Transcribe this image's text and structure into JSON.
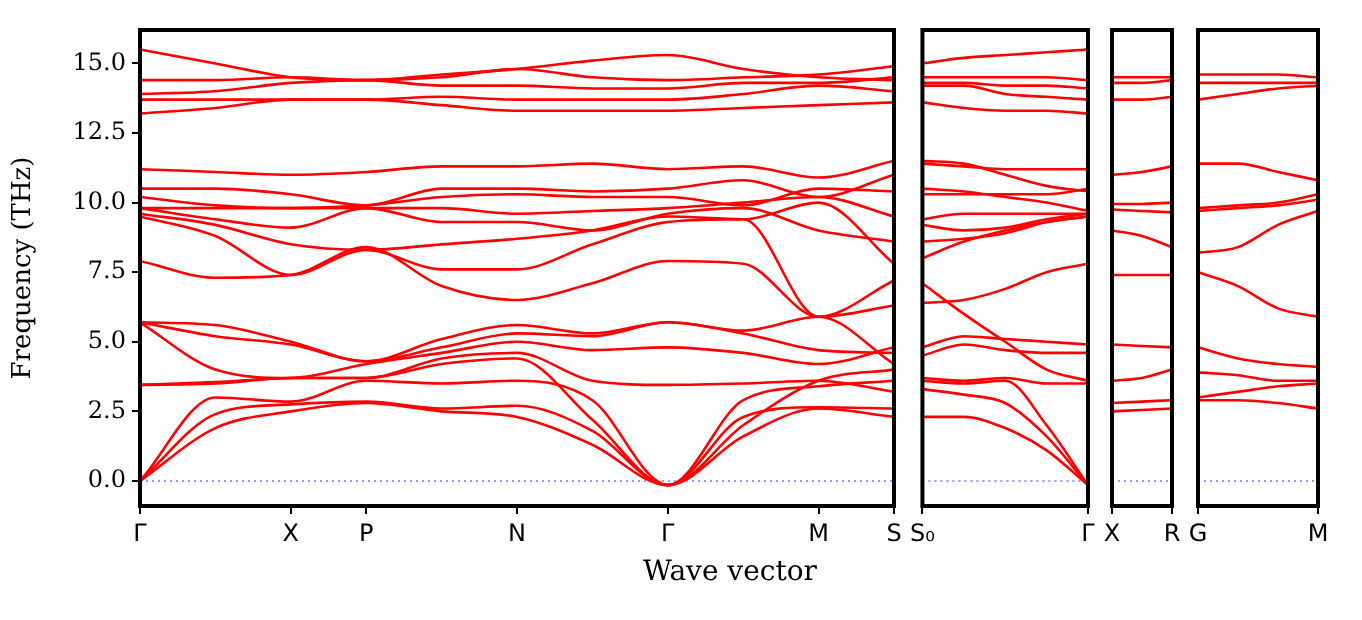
{
  "chart_data": [
    {
      "type": "line",
      "ylabel": "Frequency (THz)",
      "xlabel": "Wave vector",
      "categories": [
        "Γ",
        null,
        "X",
        "P",
        null,
        "N",
        null,
        "Γ",
        null,
        "M",
        "S"
      ],
      "ylim": [
        -0.9,
        16.2
      ],
      "yticks": [
        {
          "value": 0,
          "label": "0.0"
        },
        {
          "value": 2.5,
          "label": "2.5"
        },
        {
          "value": 5,
          "label": "5.0"
        },
        {
          "value": 7.5,
          "label": "7.5"
        },
        {
          "value": 10,
          "label": "10.0"
        },
        {
          "value": 12.5,
          "label": "12.5"
        },
        {
          "value": 15,
          "label": "15.0"
        }
      ],
      "grid": false,
      "ref_lines": [
        {
          "axis": "y",
          "value": 0,
          "color": "#7777ff",
          "line_style": "dotted"
        }
      ],
      "series": [
        {
          "color": "#ff0000",
          "values": [
            0,
            1.9,
            2.5,
            2.8,
            2.5,
            2.3,
            1.3,
            -0.15,
            1.6,
            2.6,
            2.3
          ]
        },
        {
          "color": "#ff0000",
          "values": [
            0,
            2.4,
            2.75,
            2.85,
            2.6,
            2.7,
            1.8,
            -0.15,
            2.3,
            2.65,
            2.6
          ]
        },
        {
          "color": "#ff0000",
          "values": [
            0,
            3.0,
            2.85,
            3.6,
            3.5,
            3.6,
            2.9,
            -0.15,
            2.9,
            3.4,
            3.6
          ]
        },
        {
          "color": "#ff0000",
          "values": [
            3.45,
            3.55,
            3.7,
            3.7,
            4.2,
            4.4,
            2.2,
            -0.15,
            2.0,
            3.6,
            4.0
          ]
        },
        {
          "color": "#ff0000",
          "values": [
            3.45,
            3.5,
            3.7,
            3.7,
            4.4,
            4.6,
            3.6,
            3.45,
            3.5,
            3.6,
            3.2
          ]
        },
        {
          "color": "#ff0000",
          "values": [
            5.7,
            4.0,
            3.7,
            4.2,
            4.6,
            5.0,
            4.7,
            4.8,
            4.6,
            4.2,
            4.8
          ]
        },
        {
          "color": "#ff0000",
          "values": [
            5.7,
            5.2,
            4.9,
            4.3,
            4.8,
            5.3,
            5.2,
            5.7,
            5.3,
            4.7,
            4.6
          ]
        },
        {
          "color": "#ff0000",
          "values": [
            5.7,
            5.6,
            5.0,
            4.3,
            5.1,
            5.6,
            5.3,
            5.7,
            5.4,
            5.9,
            4.2
          ]
        },
        {
          "color": "#ff0000",
          "values": [
            7.9,
            7.3,
            7.4,
            8.4,
            7.0,
            6.5,
            7.1,
            7.9,
            7.8,
            5.9,
            6.3
          ]
        },
        {
          "color": "#ff0000",
          "values": [
            9.5,
            8.8,
            7.4,
            8.3,
            7.6,
            7.6,
            8.5,
            9.3,
            9.4,
            5.9,
            7.2
          ]
        },
        {
          "color": "#ff0000",
          "values": [
            9.6,
            9.2,
            8.5,
            8.3,
            8.5,
            8.7,
            9.0,
            9.5,
            9.4,
            10.0,
            7.8
          ]
        },
        {
          "color": "#ff0000",
          "values": [
            9.8,
            9.4,
            9.1,
            9.8,
            9.3,
            9.3,
            9.0,
            9.6,
            9.8,
            9.0,
            8.6
          ]
        },
        {
          "color": "#ff0000",
          "values": [
            9.8,
            9.8,
            9.8,
            9.8,
            9.8,
            9.6,
            9.7,
            9.8,
            10.0,
            10.2,
            9.5
          ]
        },
        {
          "color": "#ff0000",
          "values": [
            10.2,
            9.9,
            9.8,
            9.9,
            10.2,
            10.3,
            10.2,
            10.2,
            9.9,
            10.5,
            10.4
          ]
        },
        {
          "color": "#ff0000",
          "values": [
            10.5,
            10.5,
            10.3,
            9.9,
            10.5,
            10.5,
            10.4,
            10.5,
            10.8,
            10.2,
            11.0
          ]
        },
        {
          "color": "#ff0000",
          "values": [
            11.2,
            11.1,
            11.0,
            11.1,
            11.3,
            11.3,
            11.4,
            11.2,
            11.3,
            10.9,
            11.5
          ]
        },
        {
          "color": "#ff0000",
          "values": [
            13.2,
            13.4,
            13.7,
            13.7,
            13.5,
            13.3,
            13.3,
            13.3,
            13.4,
            13.5,
            13.6
          ]
        },
        {
          "color": "#ff0000",
          "values": [
            13.7,
            13.7,
            13.7,
            13.7,
            13.8,
            13.7,
            13.7,
            13.7,
            13.9,
            14.2,
            14.0
          ]
        },
        {
          "color": "#ff0000",
          "values": [
            13.9,
            14.0,
            14.3,
            14.4,
            14.2,
            14.2,
            14.1,
            14.1,
            14.3,
            14.3,
            14.5
          ]
        },
        {
          "color": "#ff0000",
          "values": [
            14.4,
            14.4,
            14.5,
            14.4,
            14.5,
            14.8,
            14.5,
            14.4,
            14.5,
            14.6,
            14.9
          ]
        },
        {
          "color": "#ff0000",
          "values": [
            15.5,
            15.0,
            14.5,
            14.4,
            14.6,
            14.8,
            15.1,
            15.3,
            14.8,
            14.5,
            14.4
          ]
        }
      ]
    },
    {
      "type": "line",
      "tick_labels": "x",
      "categories": [
        "S₀",
        null,
        null,
        null,
        "Γ"
      ],
      "ylim": [
        -0.9,
        16.2
      ],
      "grid": false,
      "ref_lines": [
        {
          "axis": "y",
          "value": 0,
          "color": "#7777ff",
          "line_style": "dotted"
        }
      ],
      "series": [
        {
          "color": "#ff0000",
          "values": [
            2.3,
            2.3,
            1.9,
            1.1,
            -0.15
          ]
        },
        {
          "color": "#ff0000",
          "values": [
            3.3,
            3.1,
            2.8,
            1.6,
            -0.15
          ]
        },
        {
          "color": "#ff0000",
          "values": [
            3.6,
            3.5,
            3.6,
            2.0,
            -0.15
          ]
        },
        {
          "color": "#ff0000",
          "values": [
            3.7,
            3.6,
            3.7,
            3.5,
            3.5
          ]
        },
        {
          "color": "#ff0000",
          "values": [
            4.5,
            4.9,
            4.7,
            4.6,
            4.6
          ]
        },
        {
          "color": "#ff0000",
          "values": [
            4.8,
            5.2,
            5.1,
            5.0,
            4.9
          ]
        },
        {
          "color": "#ff0000",
          "values": [
            7.1,
            6.0,
            5.0,
            4.0,
            3.6
          ]
        },
        {
          "color": "#ff0000",
          "values": [
            6.4,
            6.5,
            6.9,
            7.5,
            7.8
          ]
        },
        {
          "color": "#ff0000",
          "values": [
            8.0,
            8.6,
            9.0,
            9.3,
            9.5
          ]
        },
        {
          "color": "#ff0000",
          "values": [
            8.6,
            8.7,
            8.9,
            9.3,
            9.5
          ]
        },
        {
          "color": "#ff0000",
          "values": [
            9.2,
            9.0,
            9.1,
            9.4,
            9.6
          ]
        },
        {
          "color": "#ff0000",
          "values": [
            9.4,
            9.6,
            9.6,
            9.6,
            9.6
          ]
        },
        {
          "color": "#ff0000",
          "values": [
            10.5,
            10.4,
            10.2,
            10.0,
            9.7
          ]
        },
        {
          "color": "#ff0000",
          "values": [
            10.3,
            10.3,
            10.3,
            10.3,
            10.5
          ]
        },
        {
          "color": "#ff0000",
          "values": [
            11.5,
            11.4,
            11.0,
            10.6,
            10.4
          ]
        },
        {
          "color": "#ff0000",
          "values": [
            11.4,
            11.3,
            11.2,
            11.2,
            11.2
          ]
        },
        {
          "color": "#ff0000",
          "values": [
            13.6,
            13.4,
            13.3,
            13.3,
            13.2
          ]
        },
        {
          "color": "#ff0000",
          "values": [
            14.2,
            14.2,
            13.9,
            13.8,
            13.7
          ]
        },
        {
          "color": "#ff0000",
          "values": [
            14.3,
            14.3,
            14.2,
            14.2,
            14.1
          ]
        },
        {
          "color": "#ff0000",
          "values": [
            14.5,
            14.5,
            14.5,
            14.5,
            14.4
          ]
        },
        {
          "color": "#ff0000",
          "values": [
            15.0,
            15.2,
            15.3,
            15.4,
            15.5
          ]
        }
      ]
    },
    {
      "type": "line",
      "tick_labels": "x",
      "categories": [
        "X",
        null,
        "R"
      ],
      "ylim": [
        -0.9,
        16.2
      ],
      "grid": false,
      "ref_lines": [
        {
          "axis": "y",
          "value": 0,
          "color": "#7777ff",
          "line_style": "dotted"
        }
      ],
      "series": [
        {
          "color": "#ff0000",
          "values": [
            2.5,
            2.55,
            2.6
          ]
        },
        {
          "color": "#ff0000",
          "values": [
            2.8,
            2.85,
            2.9
          ]
        },
        {
          "color": "#ff0000",
          "values": [
            3.6,
            3.7,
            4.0
          ]
        },
        {
          "color": "#ff0000",
          "values": [
            4.9,
            4.85,
            4.8
          ]
        },
        {
          "color": "#ff0000",
          "values": [
            7.4,
            7.4,
            7.4
          ]
        },
        {
          "color": "#ff0000",
          "values": [
            9.0,
            8.8,
            8.4
          ]
        },
        {
          "color": "#ff0000",
          "values": [
            9.75,
            9.7,
            9.65
          ]
        },
        {
          "color": "#ff0000",
          "values": [
            9.95,
            9.95,
            10.0
          ]
        },
        {
          "color": "#ff0000",
          "values": [
            11.0,
            11.1,
            11.3
          ]
        },
        {
          "color": "#ff0000",
          "values": [
            13.7,
            13.7,
            13.8
          ]
        },
        {
          "color": "#ff0000",
          "values": [
            14.3,
            14.3,
            14.4
          ]
        },
        {
          "color": "#ff0000",
          "values": [
            14.5,
            14.5,
            14.5
          ]
        }
      ]
    },
    {
      "type": "line",
      "tick_labels": "x",
      "categories": [
        "G",
        null,
        null,
        "M"
      ],
      "ylim": [
        -0.9,
        16.2
      ],
      "grid": false,
      "ref_lines": [
        {
          "axis": "y",
          "value": 0,
          "color": "#7777ff",
          "line_style": "dotted"
        }
      ],
      "series": [
        {
          "color": "#ff0000",
          "values": [
            2.9,
            2.9,
            2.8,
            2.6
          ]
        },
        {
          "color": "#ff0000",
          "values": [
            3.0,
            3.2,
            3.4,
            3.5
          ]
        },
        {
          "color": "#ff0000",
          "values": [
            3.9,
            3.8,
            3.6,
            3.6
          ]
        },
        {
          "color": "#ff0000",
          "values": [
            4.8,
            4.4,
            4.2,
            4.1
          ]
        },
        {
          "color": "#ff0000",
          "values": [
            7.5,
            7.0,
            6.2,
            5.9
          ]
        },
        {
          "color": "#ff0000",
          "values": [
            8.2,
            8.4,
            9.2,
            9.7
          ]
        },
        {
          "color": "#ff0000",
          "values": [
            9.7,
            9.8,
            9.9,
            10.1
          ]
        },
        {
          "color": "#ff0000",
          "values": [
            9.8,
            9.9,
            10.0,
            10.3
          ]
        },
        {
          "color": "#ff0000",
          "values": [
            11.4,
            11.4,
            11.1,
            10.8
          ]
        },
        {
          "color": "#ff0000",
          "values": [
            13.7,
            13.9,
            14.1,
            14.2
          ]
        },
        {
          "color": "#ff0000",
          "values": [
            14.3,
            14.3,
            14.3,
            14.3
          ]
        },
        {
          "color": "#ff0000",
          "values": [
            14.6,
            14.6,
            14.6,
            14.5
          ]
        }
      ]
    }
  ]
}
